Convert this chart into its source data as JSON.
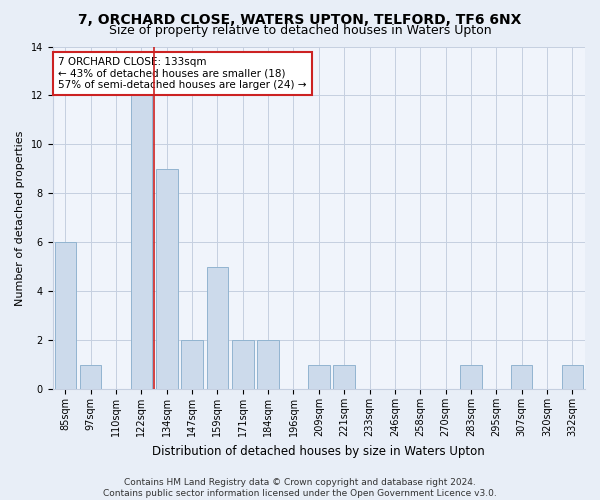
{
  "title1": "7, ORCHARD CLOSE, WATERS UPTON, TELFORD, TF6 6NX",
  "title2": "Size of property relative to detached houses in Waters Upton",
  "xlabel": "Distribution of detached houses by size in Waters Upton",
  "ylabel": "Number of detached properties",
  "categories": [
    "85sqm",
    "97sqm",
    "110sqm",
    "122sqm",
    "134sqm",
    "147sqm",
    "159sqm",
    "171sqm",
    "184sqm",
    "196sqm",
    "209sqm",
    "221sqm",
    "233sqm",
    "246sqm",
    "258sqm",
    "270sqm",
    "283sqm",
    "295sqm",
    "307sqm",
    "320sqm",
    "332sqm"
  ],
  "values": [
    6,
    1,
    0,
    12,
    9,
    2,
    5,
    2,
    2,
    0,
    1,
    1,
    0,
    0,
    0,
    0,
    1,
    0,
    1,
    0,
    1
  ],
  "bar_color": "#ccdaeb",
  "bar_edge_color": "#92b4d0",
  "reference_line_x": 3.5,
  "annotation_text": "7 ORCHARD CLOSE: 133sqm\n← 43% of detached houses are smaller (18)\n57% of semi-detached houses are larger (24) →",
  "annotation_box_color": "#ffffff",
  "annotation_box_edge_color": "#cc2222",
  "ylim": [
    0,
    14
  ],
  "yticks": [
    0,
    2,
    4,
    6,
    8,
    10,
    12,
    14
  ],
  "footer": "Contains HM Land Registry data © Crown copyright and database right 2024.\nContains public sector information licensed under the Open Government Licence v3.0.",
  "bg_color": "#e8eef7",
  "plot_bg_color": "#f0f4fb",
  "grid_color": "#c5cfe0",
  "title1_fontsize": 10,
  "title2_fontsize": 9,
  "xlabel_fontsize": 8.5,
  "ylabel_fontsize": 8,
  "tick_fontsize": 7,
  "annotation_fontsize": 7.5,
  "footer_fontsize": 6.5
}
